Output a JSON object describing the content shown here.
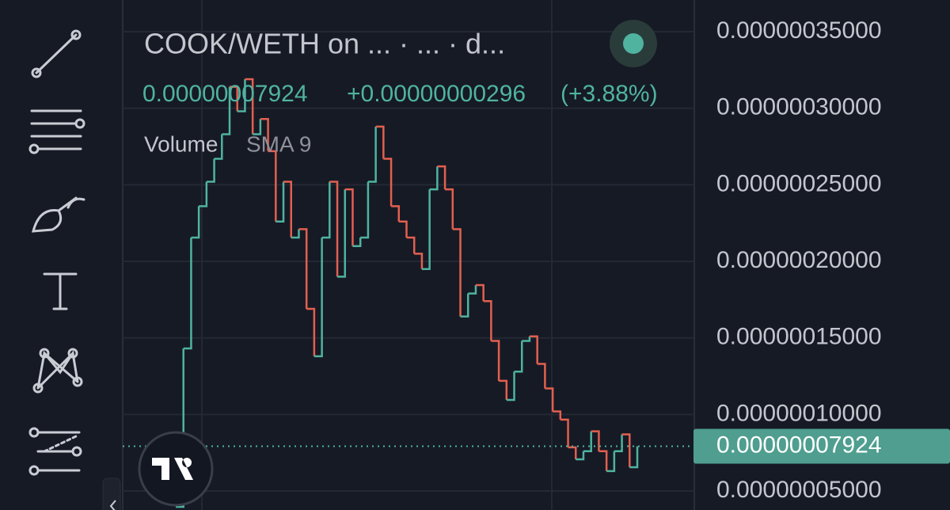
{
  "chart_data": {
    "type": "line",
    "title": "COOK/WETH on ...  · ...  · d...",
    "price_text": "0.00000007924",
    "change_text": "+0.00000000296",
    "change_pct_text": "(+3.88%)",
    "volume_label": "Volume",
    "volume_sma_label": "SMA 9",
    "up_color": "#4fb3a0",
    "down_color": "#e2604f",
    "values": [
      3.97e-08,
      1.431e-07,
      2.155e-07,
      2.36e-07,
      2.52e-07,
      2.67e-07,
      2.83e-07,
      3.14e-07,
      2.98e-07,
      3.19e-07,
      2.83e-07,
      2.93e-07,
      2.72e-07,
      2.26e-07,
      2.52e-07,
      2.155e-07,
      2.21e-07,
      1.69e-07,
      1.38e-07,
      2.155e-07,
      2.52e-07,
      1.9e-07,
      2.47e-07,
      2.1e-07,
      2.155e-07,
      2.52e-07,
      2.88e-07,
      2.67e-07,
      2.36e-07,
      2.26e-07,
      2.155e-07,
      2.05e-07,
      1.95e-07,
      2.47e-07,
      2.62e-07,
      2.47e-07,
      2.21e-07,
      1.64e-07,
      1.79e-07,
      1.845e-07,
      1.74e-07,
      1.48e-07,
      1.22e-07,
      1.095e-07,
      1.28e-07,
      1.48e-07,
      1.51e-07,
      1.33e-07,
      1.17e-07,
      1.02e-07,
      9.66e-08,
      7.85e-08,
      7.07e-08,
      7.6e-08,
      8.9e-08,
      7.6e-08,
      6.3e-08,
      7.6e-08,
      8.7e-08,
      6.55e-08,
      7.924e-08
    ],
    "last_price": {
      "value": 7.924e-08,
      "label": "0.00000007924"
    },
    "ylim": [
      3.76e-08,
      3.707e-07
    ],
    "yticks": [
      {
        "value": 5e-08,
        "label": "0.00000005000"
      },
      {
        "value": 1e-07,
        "label": "0.00000010000"
      },
      {
        "value": 1.5e-07,
        "label": "0.00000015000"
      },
      {
        "value": 2e-07,
        "label": "0.00000020000"
      },
      {
        "value": 2.5e-07,
        "label": "0.00000025000"
      },
      {
        "value": 3e-07,
        "label": "0.00000030000"
      },
      {
        "value": 3.5e-07,
        "label": "0.00000035000"
      }
    ],
    "grid": true
  }
}
